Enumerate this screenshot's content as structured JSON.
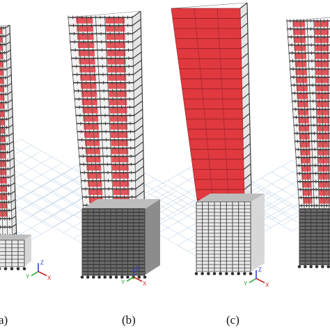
{
  "panels": [
    {
      "id": "a",
      "label": "a)",
      "style": "partial-red",
      "cropped": "left"
    },
    {
      "id": "b",
      "label": "(b)",
      "style": "partial-red"
    },
    {
      "id": "c",
      "label": "(c)",
      "style": "full-red"
    },
    {
      "id": "d",
      "label": "",
      "style": "partial-red",
      "cropped": "right"
    }
  ],
  "axis_labels": {
    "x": "X",
    "y": "Y",
    "z": "Z"
  },
  "colors": {
    "wall_red": "#e0393f",
    "frame_dark": "#3a3a3a",
    "grid_blue": "#c7d8ea",
    "axis_x": "#d11f1f",
    "axis_y": "#1fa32b",
    "axis_z": "#2a3bd6"
  }
}
